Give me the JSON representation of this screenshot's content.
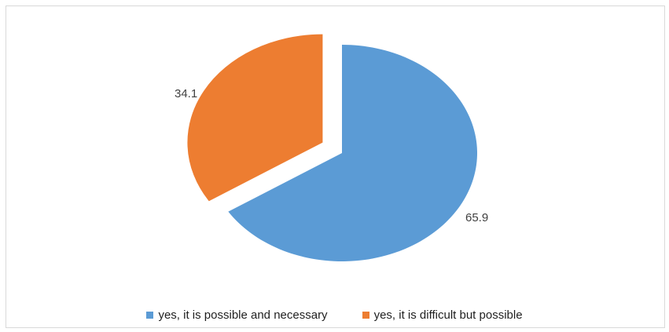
{
  "chart_data": {
    "type": "pie",
    "title": "",
    "categories": [
      "yes, it is possible and necessary",
      "yes, it is difficult but possible"
    ],
    "values": [
      65.9,
      34.1
    ],
    "data_labels": [
      "65.9",
      "34.1"
    ],
    "colors": [
      "#5b9bd5",
      "#ed7d31"
    ],
    "exploded": true,
    "legend_position": "bottom"
  }
}
